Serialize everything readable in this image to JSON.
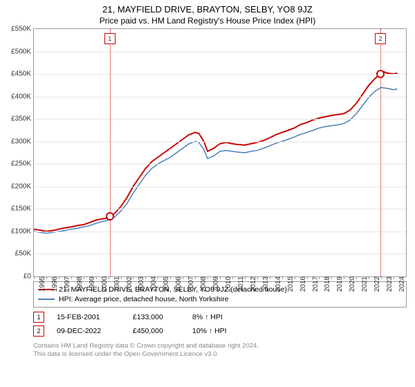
{
  "title": "21, MAYFIELD DRIVE, BRAYTON, SELBY, YO8 9JZ",
  "subtitle": "Price paid vs. HM Land Registry's House Price Index (HPI)",
  "chart": {
    "type": "line",
    "background_color": "#ffffff",
    "grid_color": "#e5e5e5",
    "border_color": "#999999",
    "x_years": [
      1995,
      1996,
      1997,
      1998,
      1999,
      2000,
      2001,
      2002,
      2003,
      2004,
      2005,
      2006,
      2007,
      2008,
      2009,
      2010,
      2011,
      2012,
      2013,
      2014,
      2015,
      2016,
      2017,
      2018,
      2019,
      2020,
      2021,
      2022,
      2023,
      2024
    ],
    "x_min": 1995,
    "x_max": 2025,
    "y_min": 0,
    "y_max": 550000,
    "y_ticks": [
      0,
      50000,
      100000,
      150000,
      200000,
      250000,
      300000,
      350000,
      400000,
      450000,
      500000,
      550000
    ],
    "y_tick_labels": [
      "£0",
      "£50K",
      "£100K",
      "£150K",
      "£200K",
      "£250K",
      "£300K",
      "£350K",
      "£400K",
      "£450K",
      "£500K",
      "£550K"
    ],
    "y_tick_fontsize": 10,
    "x_tick_fontsize": 10,
    "series": [
      {
        "name": "price_paid",
        "label": "21, MAYFIELD DRIVE, BRAYTON, SELBY, YO8 9JZ (detached house)",
        "color": "#cc0000",
        "line_width": 2,
        "data": [
          [
            1995.0,
            105000
          ],
          [
            1995.5,
            103000
          ],
          [
            1996.0,
            100000
          ],
          [
            1996.5,
            102000
          ],
          [
            1997.0,
            105000
          ],
          [
            1997.5,
            108000
          ],
          [
            1998.0,
            110000
          ],
          [
            1998.5,
            113000
          ],
          [
            1999.0,
            115000
          ],
          [
            1999.5,
            120000
          ],
          [
            2000.0,
            125000
          ],
          [
            2000.5,
            128000
          ],
          [
            2001.0,
            130000
          ],
          [
            2001.12,
            133000
          ],
          [
            2001.5,
            140000
          ],
          [
            2002.0,
            155000
          ],
          [
            2002.5,
            175000
          ],
          [
            2003.0,
            200000
          ],
          [
            2003.5,
            220000
          ],
          [
            2004.0,
            240000
          ],
          [
            2004.5,
            255000
          ],
          [
            2005.0,
            265000
          ],
          [
            2005.5,
            275000
          ],
          [
            2006.0,
            285000
          ],
          [
            2006.5,
            295000
          ],
          [
            2007.0,
            305000
          ],
          [
            2007.5,
            315000
          ],
          [
            2008.0,
            320000
          ],
          [
            2008.3,
            318000
          ],
          [
            2008.7,
            300000
          ],
          [
            2009.0,
            278000
          ],
          [
            2009.5,
            285000
          ],
          [
            2010.0,
            295000
          ],
          [
            2010.5,
            298000
          ],
          [
            2011.0,
            295000
          ],
          [
            2011.5,
            293000
          ],
          [
            2012.0,
            292000
          ],
          [
            2012.5,
            295000
          ],
          [
            2013.0,
            298000
          ],
          [
            2013.5,
            302000
          ],
          [
            2014.0,
            308000
          ],
          [
            2014.5,
            315000
          ],
          [
            2015.0,
            320000
          ],
          [
            2015.5,
            325000
          ],
          [
            2016.0,
            330000
          ],
          [
            2016.5,
            338000
          ],
          [
            2017.0,
            342000
          ],
          [
            2017.5,
            348000
          ],
          [
            2018.0,
            352000
          ],
          [
            2018.5,
            355000
          ],
          [
            2019.0,
            358000
          ],
          [
            2019.5,
            360000
          ],
          [
            2020.0,
            362000
          ],
          [
            2020.5,
            370000
          ],
          [
            2021.0,
            385000
          ],
          [
            2021.5,
            405000
          ],
          [
            2022.0,
            425000
          ],
          [
            2022.5,
            440000
          ],
          [
            2022.94,
            450000
          ],
          [
            2023.2,
            455000
          ],
          [
            2023.5,
            452000
          ],
          [
            2024.0,
            450000
          ],
          [
            2024.3,
            452000
          ]
        ]
      },
      {
        "name": "hpi",
        "label": "HPI: Average price, detached house, North Yorkshire",
        "color": "#4a7ebb",
        "line_width": 1.5,
        "data": [
          [
            1995.0,
            100000
          ],
          [
            1995.5,
            98000
          ],
          [
            1996.0,
            96000
          ],
          [
            1996.5,
            98000
          ],
          [
            1997.0,
            100000
          ],
          [
            1997.5,
            102000
          ],
          [
            1998.0,
            105000
          ],
          [
            1998.5,
            107000
          ],
          [
            1999.0,
            110000
          ],
          [
            1999.5,
            113000
          ],
          [
            2000.0,
            118000
          ],
          [
            2000.5,
            122000
          ],
          [
            2001.0,
            125000
          ],
          [
            2001.5,
            132000
          ],
          [
            2002.0,
            145000
          ],
          [
            2002.5,
            162000
          ],
          [
            2003.0,
            185000
          ],
          [
            2003.5,
            205000
          ],
          [
            2004.0,
            225000
          ],
          [
            2004.5,
            240000
          ],
          [
            2005.0,
            250000
          ],
          [
            2005.5,
            258000
          ],
          [
            2006.0,
            265000
          ],
          [
            2006.5,
            275000
          ],
          [
            2007.0,
            285000
          ],
          [
            2007.5,
            295000
          ],
          [
            2008.0,
            300000
          ],
          [
            2008.3,
            298000
          ],
          [
            2008.7,
            282000
          ],
          [
            2009.0,
            262000
          ],
          [
            2009.5,
            268000
          ],
          [
            2010.0,
            278000
          ],
          [
            2010.5,
            280000
          ],
          [
            2011.0,
            278000
          ],
          [
            2011.5,
            276000
          ],
          [
            2012.0,
            275000
          ],
          [
            2012.5,
            278000
          ],
          [
            2013.0,
            280000
          ],
          [
            2013.5,
            285000
          ],
          [
            2014.0,
            290000
          ],
          [
            2014.5,
            296000
          ],
          [
            2015.0,
            300000
          ],
          [
            2015.5,
            305000
          ],
          [
            2016.0,
            310000
          ],
          [
            2016.5,
            316000
          ],
          [
            2017.0,
            320000
          ],
          [
            2017.5,
            325000
          ],
          [
            2018.0,
            330000
          ],
          [
            2018.5,
            333000
          ],
          [
            2019.0,
            335000
          ],
          [
            2019.5,
            337000
          ],
          [
            2020.0,
            340000
          ],
          [
            2020.5,
            348000
          ],
          [
            2021.0,
            362000
          ],
          [
            2021.5,
            380000
          ],
          [
            2022.0,
            398000
          ],
          [
            2022.5,
            412000
          ],
          [
            2023.0,
            420000
          ],
          [
            2023.5,
            418000
          ],
          [
            2024.0,
            415000
          ],
          [
            2024.3,
            417000
          ]
        ]
      }
    ],
    "markers": [
      {
        "n": "1",
        "year": 2001.12,
        "value": 133000,
        "color": "#cc0000"
      },
      {
        "n": "2",
        "year": 2022.94,
        "value": 450000,
        "color": "#cc0000"
      }
    ]
  },
  "legend": {
    "series1": "21, MAYFIELD DRIVE, BRAYTON, SELBY, YO8 9JZ (detached house)",
    "series2": "HPI: Average price, detached house, North Yorkshire",
    "color1": "#cc0000",
    "color2": "#4a7ebb"
  },
  "sales": [
    {
      "n": "1",
      "date": "15-FEB-2001",
      "price": "£133,000",
      "delta": "8% ↑ HPI",
      "color": "#cc0000"
    },
    {
      "n": "2",
      "date": "09-DEC-2022",
      "price": "£450,000",
      "delta": "10% ↑ HPI",
      "color": "#cc0000"
    }
  ],
  "footer": {
    "line1": "Contains HM Land Registry data © Crown copyright and database right 2024.",
    "line2": "This data is licensed under the Open Government Licence v3.0."
  }
}
